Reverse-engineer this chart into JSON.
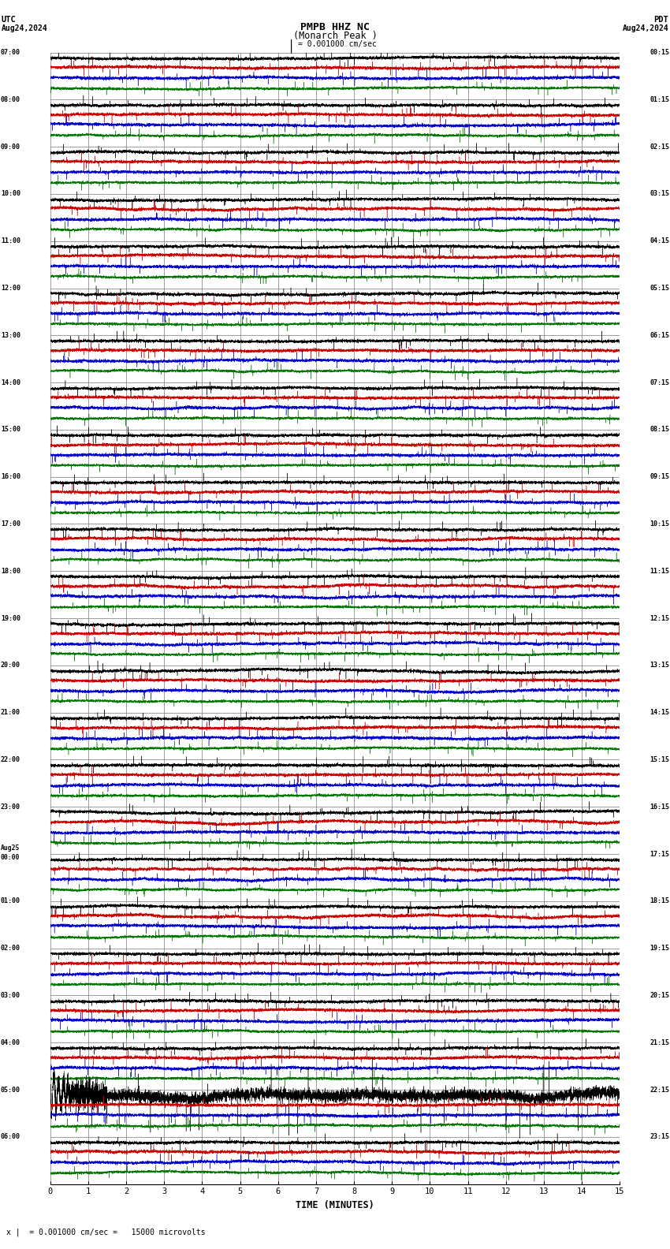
{
  "title_line1": "PMPB HHZ NC",
  "title_line2": "(Monarch Peak )",
  "scale_label": "= 0.001000 cm/sec",
  "left_header": "UTC",
  "left_subheader": "Aug24,2024",
  "right_header": "PDT",
  "right_subheader": "Aug24,2024",
  "xlabel": "TIME (MINUTES)",
  "footer": "= 0.001000 cm/sec =   15000 microvolts",
  "footer_prefix": "x |",
  "xlim": [
    0,
    15
  ],
  "xticks": [
    0,
    1,
    2,
    3,
    4,
    5,
    6,
    7,
    8,
    9,
    10,
    11,
    12,
    13,
    14,
    15
  ],
  "utc_labels": [
    "07:00",
    "08:00",
    "09:00",
    "10:00",
    "11:00",
    "12:00",
    "13:00",
    "14:00",
    "15:00",
    "16:00",
    "17:00",
    "18:00",
    "19:00",
    "20:00",
    "21:00",
    "22:00",
    "23:00",
    "Aug25\n00:00",
    "01:00",
    "02:00",
    "03:00",
    "04:00",
    "05:00",
    "06:00"
  ],
  "pdt_labels": [
    "00:15",
    "01:15",
    "02:15",
    "03:15",
    "04:15",
    "05:15",
    "06:15",
    "07:15",
    "08:15",
    "09:15",
    "10:15",
    "11:15",
    "12:15",
    "13:15",
    "14:15",
    "15:15",
    "16:15",
    "17:15",
    "18:15",
    "19:15",
    "20:15",
    "21:15",
    "22:15",
    "23:15"
  ],
  "num_rows": 24,
  "bg_color": "#ffffff",
  "grid_color": "#777777",
  "trace_colors": [
    "#000000",
    "#cc0000",
    "#0000cc",
    "#007700"
  ],
  "sub_offsets": [
    0.12,
    0.32,
    0.54,
    0.76
  ],
  "trace_amp": [
    0.06,
    0.06,
    0.06,
    0.05
  ],
  "special_row": 22,
  "special_amp_factor": 4.0,
  "seed": 12345
}
